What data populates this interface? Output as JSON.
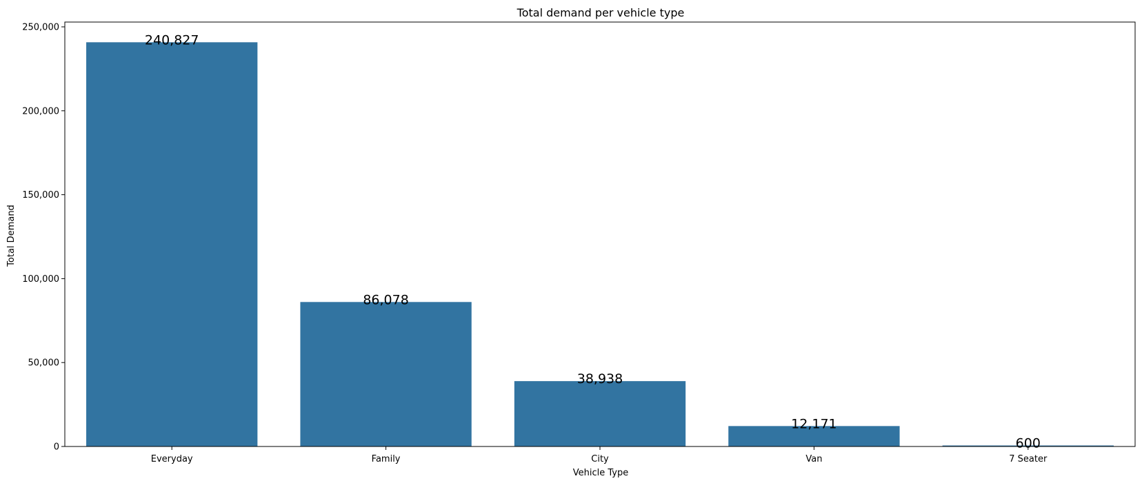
{
  "chart_data": {
    "type": "bar",
    "title": "Total demand per vehicle type",
    "xlabel": "Vehicle Type",
    "ylabel": "Total Demand",
    "categories": [
      "Everyday",
      "Family",
      "City",
      "Van",
      "7 Seater"
    ],
    "values": [
      240827,
      86078,
      38938,
      12171,
      600
    ],
    "data_labels": [
      "240,827",
      "86,078",
      "38,938",
      "12,171",
      "600"
    ],
    "ylim": [
      0,
      252867
    ],
    "yticks": [
      0,
      50000,
      100000,
      150000,
      200000,
      250000
    ],
    "ytick_labels": [
      "0",
      "50,000",
      "100,000",
      "150,000",
      "200,000",
      "250,000"
    ],
    "grid": false,
    "bar_color": "#3274a1"
  }
}
